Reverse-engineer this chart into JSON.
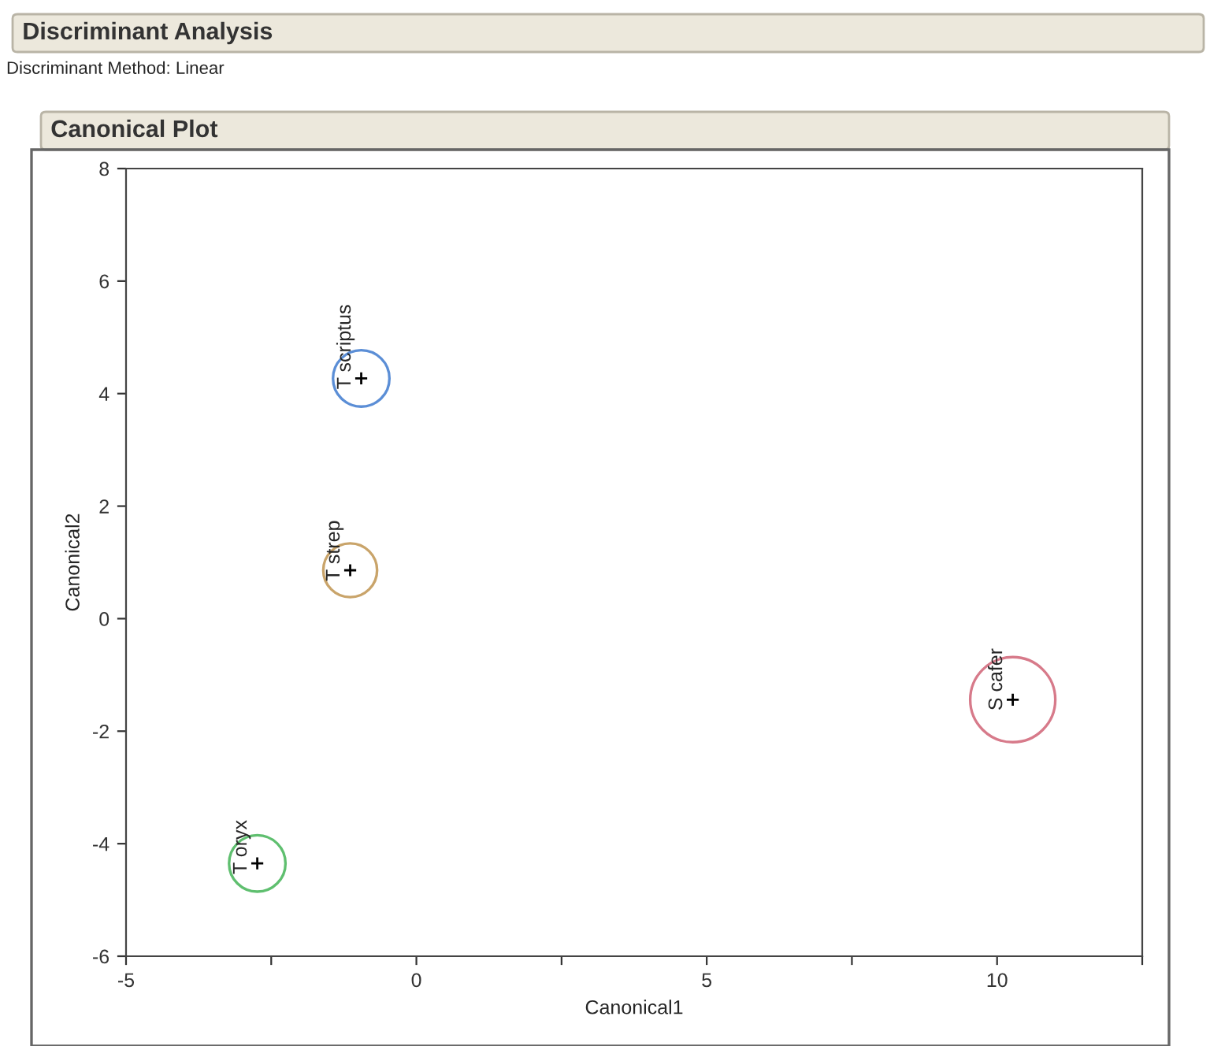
{
  "chart_data": {
    "type": "bubble",
    "title": "Discriminant Analysis",
    "subtitle": "Discriminant Method: Linear",
    "annotations": [
      "Canonical Plot"
    ],
    "xlabel": "Canonical1",
    "ylabel": "Canonical2",
    "xlim": [
      -5,
      12.5
    ],
    "ylim": [
      -6,
      8
    ],
    "xticks": [
      -5,
      {
        "value": -2.5,
        "label": null
      },
      0,
      {
        "value": 2.5,
        "label": null
      },
      5,
      {
        "value": 7.5,
        "label": null
      },
      10,
      {
        "value": 12.5,
        "label": null
      }
    ],
    "yticks": [
      -6,
      -4,
      -2,
      0,
      2,
      4,
      6,
      8
    ],
    "grid": false,
    "legend": false,
    "series": [
      {
        "name": "T scriptus",
        "color": "#5b8ed6",
        "x": [
          -0.95
        ],
        "values": [
          4.27
        ],
        "sizes": [
          0.44
        ]
      },
      {
        "name": "T strep",
        "color": "#c9a46a",
        "x": [
          -1.14
        ],
        "values": [
          0.86
        ],
        "sizes": [
          0.4
        ]
      },
      {
        "name": "T oryx",
        "color": "#5fbf6f",
        "x": [
          -2.74
        ],
        "values": [
          -4.35
        ],
        "sizes": [
          0.44
        ]
      },
      {
        "name": "S cafer",
        "color": "#d77a8a",
        "x": [
          10.27
        ],
        "values": [
          -1.44
        ],
        "sizes": [
          1
        ]
      }
    ]
  }
}
